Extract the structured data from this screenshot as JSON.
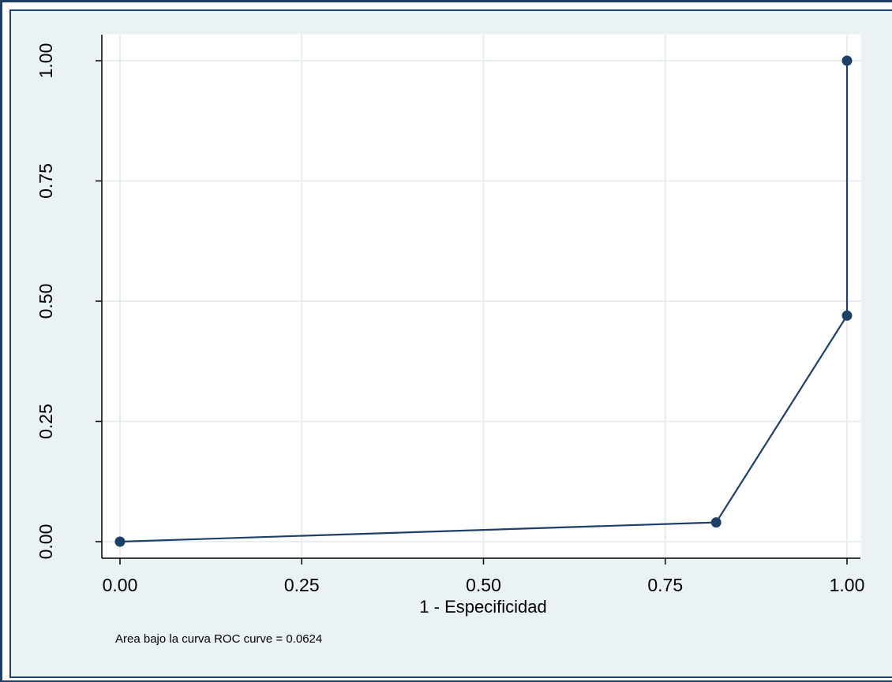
{
  "chart_data": {
    "type": "line",
    "xlabel": "1 - Especificidad",
    "ylabel": "",
    "xlim": [
      0,
      1
    ],
    "ylim": [
      0,
      1
    ],
    "x_ticks": [
      "0.00",
      "0.25",
      "0.50",
      "0.75",
      "1.00"
    ],
    "y_ticks": [
      "0.00",
      "0.25",
      "0.50",
      "0.75",
      "1.00"
    ],
    "grid": true,
    "series": [
      {
        "x": [
          0.0,
          0.82,
          1.0,
          1.0
        ],
        "y": [
          0.0,
          0.04,
          0.47,
          1.0
        ],
        "markers": true
      }
    ],
    "note": "Area bajo la curva ROC curve = 0.0624",
    "colors": {
      "series": "#1e3f66",
      "plot_background": "#ffffff",
      "graph_background": "#eaf2f3",
      "grid": "#e6eeef",
      "frame": "#1e3f66"
    }
  }
}
